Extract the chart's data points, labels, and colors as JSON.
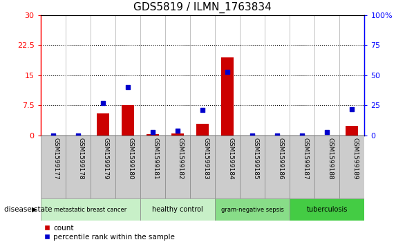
{
  "title": "GDS5819 / ILMN_1763834",
  "samples": [
    "GSM1599177",
    "GSM1599178",
    "GSM1599179",
    "GSM1599180",
    "GSM1599181",
    "GSM1599182",
    "GSM1599183",
    "GSM1599184",
    "GSM1599185",
    "GSM1599186",
    "GSM1599187",
    "GSM1599188",
    "GSM1599189"
  ],
  "count": [
    0,
    0,
    5.5,
    7.5,
    0.3,
    0.5,
    3.0,
    19.5,
    0,
    0,
    0,
    0,
    2.5
  ],
  "percentile": [
    0,
    0,
    27,
    40,
    3,
    4,
    21,
    53,
    0,
    0,
    0,
    3,
    22
  ],
  "groups": [
    {
      "label": "metastatic breast cancer",
      "start": 0,
      "end": 3,
      "color": "#c8f0c8"
    },
    {
      "label": "healthy control",
      "start": 4,
      "end": 6,
      "color": "#c8f0c8"
    },
    {
      "label": "gram-negative sepsis",
      "start": 7,
      "end": 9,
      "color": "#88dd88"
    },
    {
      "label": "tuberculosis",
      "start": 10,
      "end": 12,
      "color": "#44cc44"
    }
  ],
  "ylim_left": [
    0,
    30
  ],
  "ylim_right": [
    0,
    100
  ],
  "yticks_left": [
    0,
    7.5,
    15,
    22.5,
    30
  ],
  "yticks_right": [
    0,
    25,
    50,
    75,
    100
  ],
  "ytick_labels_left": [
    "0",
    "7.5",
    "15",
    "22.5",
    "30"
  ],
  "ytick_labels_right": [
    "0",
    "25",
    "50",
    "75",
    "100%"
  ],
  "bar_color": "#cc0000",
  "dot_color": "#0000cc",
  "bg_color": "#ffffff",
  "sample_bg": "#cccccc",
  "disease_state_label": "disease state",
  "legend_count": "count",
  "legend_percentile": "percentile rank within the sample"
}
